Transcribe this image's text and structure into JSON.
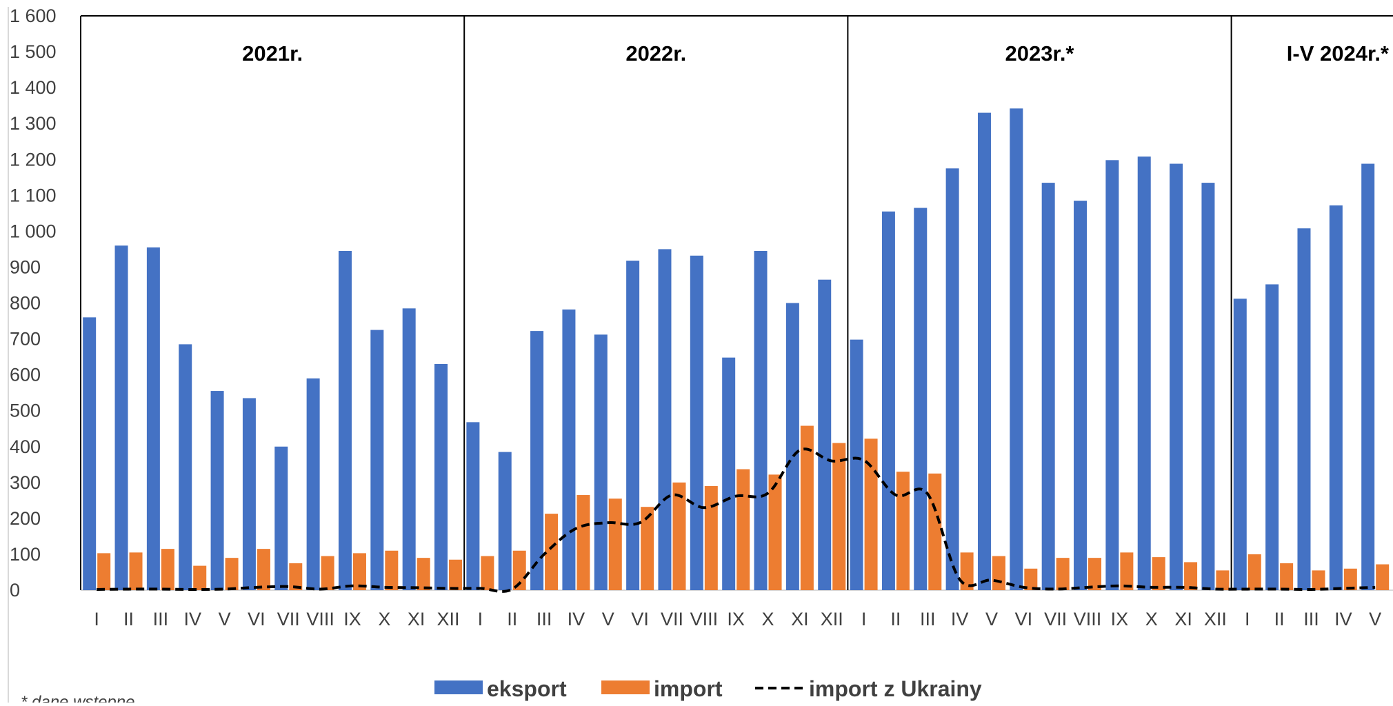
{
  "chart_data": {
    "type": "bar",
    "ylim": [
      0,
      1600
    ],
    "y_ticks": [
      "0",
      "100",
      "200",
      "300",
      "400",
      "500",
      "600",
      "700",
      "800",
      "900",
      "1 000",
      "1 100",
      "1 200",
      "1 300",
      "1 400",
      "1 500",
      "1 600"
    ],
    "y_tick_values": [
      0,
      100,
      200,
      300,
      400,
      500,
      600,
      700,
      800,
      900,
      1000,
      1100,
      1200,
      1300,
      1400,
      1500,
      1600
    ],
    "categories": [
      "I",
      "II",
      "III",
      "IV",
      "V",
      "VI",
      "VII",
      "VIII",
      "IX",
      "X",
      "XI",
      "XII",
      "I",
      "II",
      "III",
      "IV",
      "V",
      "VI",
      "VII",
      "VIII",
      "IX",
      "X",
      "XI",
      "XII",
      "I",
      "II",
      "III",
      "IV",
      "V",
      "VI",
      "VII",
      "VIII",
      "IX",
      "X",
      "XI",
      "XII",
      "I",
      "II",
      "III",
      "IV",
      "V"
    ],
    "periods": [
      {
        "label": "2021r.",
        "start": 0,
        "end": 11
      },
      {
        "label": "2022r.",
        "start": 12,
        "end": 23
      },
      {
        "label": "2023r.*",
        "start": 24,
        "end": 35
      },
      {
        "label": "I-V 2024r.*",
        "start": 36,
        "end": 40
      }
    ],
    "series": [
      {
        "name": "eksport",
        "kind": "bar",
        "color": "#4472C4",
        "values": [
          760,
          960,
          955,
          685,
          555,
          535,
          400,
          590,
          945,
          725,
          785,
          630,
          468,
          385,
          722,
          782,
          712,
          918,
          950,
          932,
          648,
          945,
          800,
          865,
          698,
          1055,
          1065,
          1175,
          1330,
          1342,
          1135,
          1085,
          1198,
          1208,
          1188,
          1135,
          812,
          852,
          1008,
          1072,
          1188
        ]
      },
      {
        "name": "import",
        "kind": "bar",
        "color": "#ED7D31",
        "values": [
          103,
          105,
          115,
          68,
          90,
          115,
          75,
          95,
          103,
          110,
          90,
          85,
          95,
          110,
          213,
          265,
          255,
          232,
          300,
          290,
          337,
          322,
          458,
          410,
          422,
          330,
          325,
          105,
          95,
          60,
          90,
          90,
          105,
          92,
          78,
          55,
          100,
          75,
          55,
          60,
          72
        ]
      },
      {
        "name": "import z Ukrainy",
        "kind": "line",
        "color": "#000000",
        "style": "dashed",
        "values": [
          2,
          3,
          3,
          2,
          3,
          8,
          10,
          3,
          12,
          8,
          7,
          5,
          5,
          3,
          100,
          172,
          188,
          188,
          265,
          230,
          262,
          270,
          390,
          360,
          362,
          265,
          268,
          30,
          28,
          8,
          3,
          8,
          12,
          8,
          8,
          3,
          3,
          3,
          2,
          5,
          8
        ]
      }
    ],
    "legend": {
      "position": "bottom",
      "items": [
        "eksport",
        "import",
        "import z Ukrainy"
      ]
    },
    "footnote": "* dane wstępne"
  }
}
